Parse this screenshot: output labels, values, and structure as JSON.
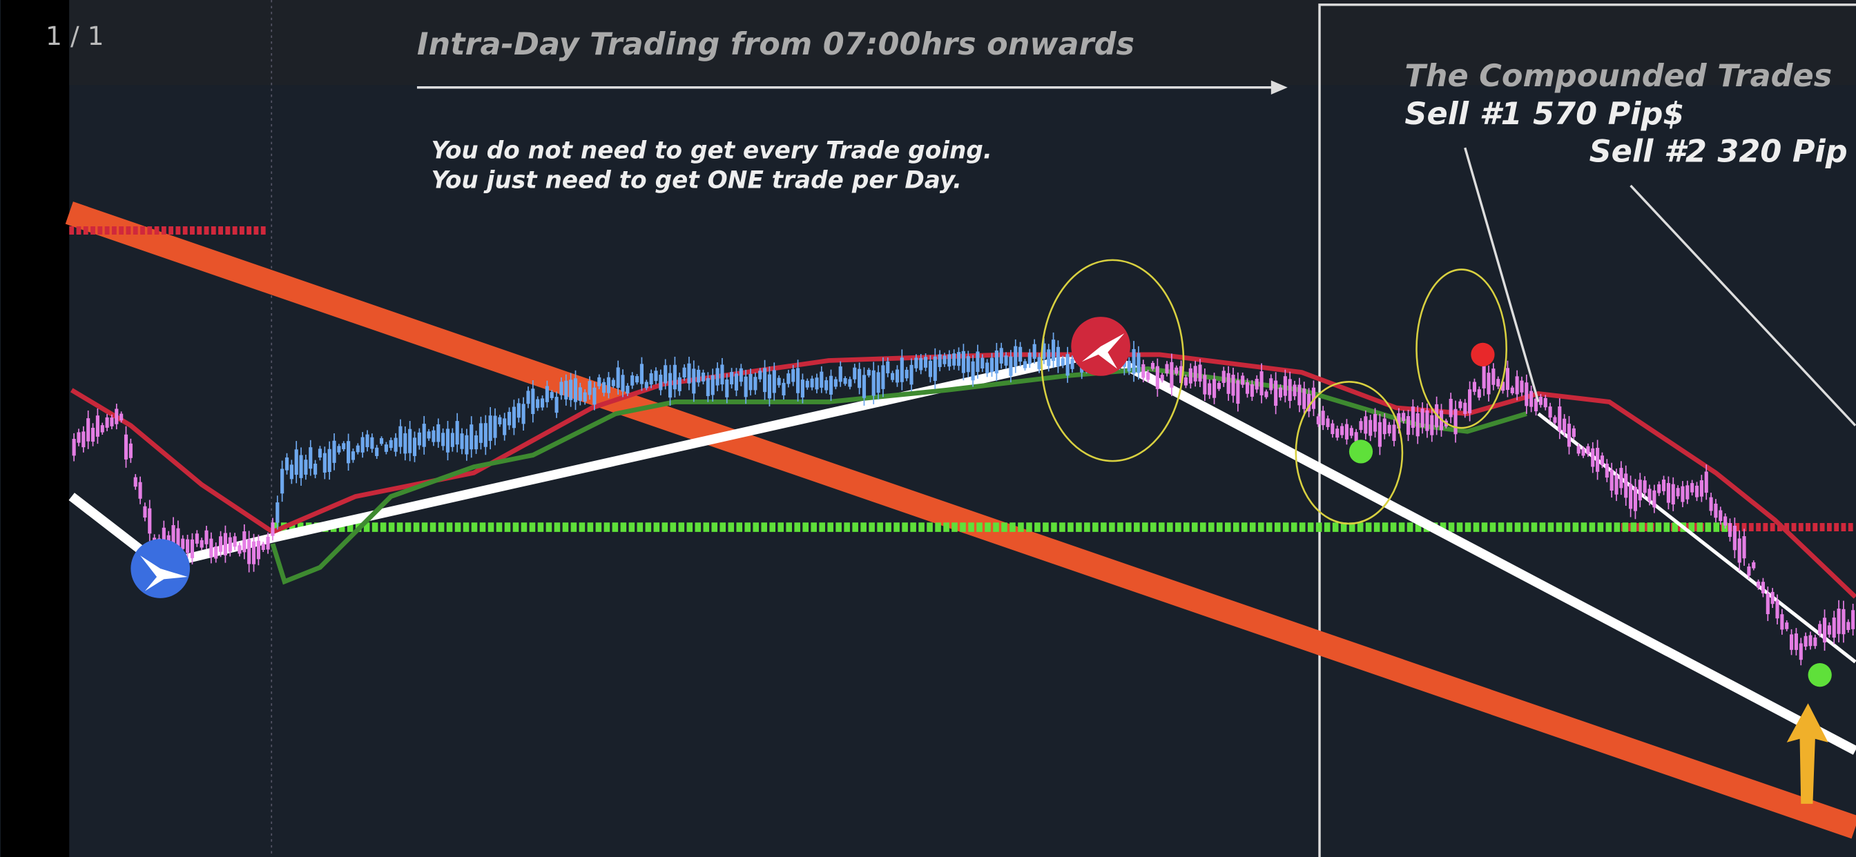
{
  "viewer": {
    "page_counter": "1 / 1"
  },
  "annotations": {
    "headline": "Intra-Day Trading from 07:00hrs onwards",
    "note_line_1": "You do not need to get every Trade going.",
    "note_line_2": "You just need to get ONE trade per Day.",
    "box_title": "The Compounded Trades",
    "sell_1": "Sell #1 570 Pip$",
    "sell_2": "Sell #2 320 Pip"
  }
}
